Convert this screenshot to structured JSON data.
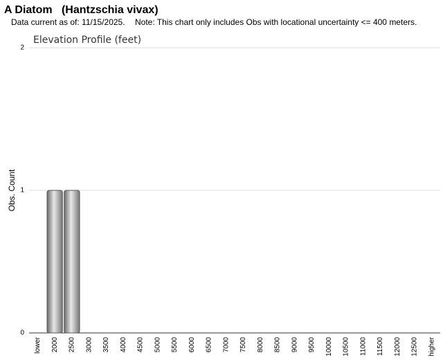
{
  "header": {
    "title": "A Diatom   (Hantzschia vivax)",
    "data_current": "Data current as of: 11/15/2025.",
    "note": "Note: This chart only includes Obs with locational uncertainty <= 400 meters."
  },
  "chart_data": {
    "type": "bar",
    "title": "Elevation Profile (feet)",
    "y_label": "Obs. Count",
    "categories": [
      "lower",
      "2000",
      "2500",
      "3000",
      "3500",
      "4000",
      "4500",
      "5000",
      "5500",
      "6000",
      "6500",
      "7000",
      "7500",
      "8000",
      "8500",
      "9000",
      "9500",
      "10000",
      "10500",
      "11000",
      "11500",
      "12000",
      "12500",
      "higher"
    ],
    "values": [
      0,
      1,
      1,
      0,
      0,
      0,
      0,
      0,
      0,
      0,
      0,
      0,
      0,
      0,
      0,
      0,
      0,
      0,
      0,
      0,
      0,
      0,
      0,
      0
    ],
    "color": "#a0a0a0",
    "ylim": [
      0,
      2
    ],
    "yticks": [
      0,
      1,
      2
    ],
    "grid": true
  }
}
